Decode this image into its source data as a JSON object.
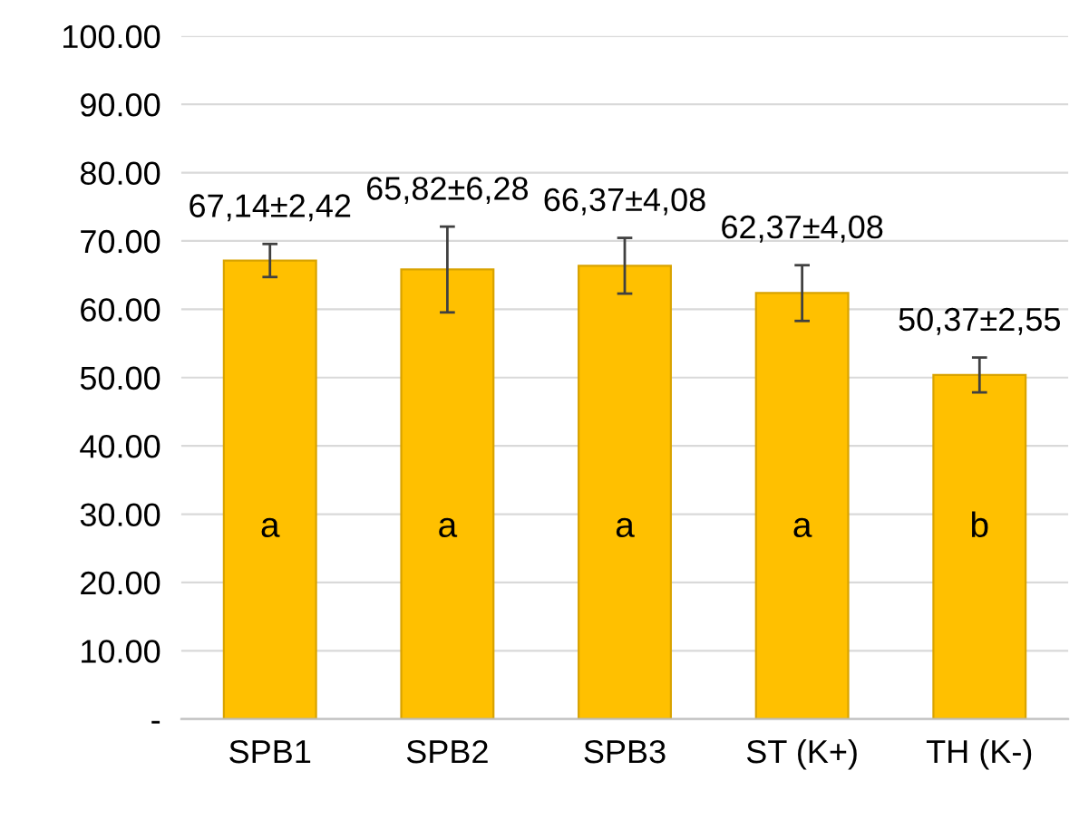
{
  "chart_data": {
    "type": "bar",
    "categories": [
      "SPB1",
      "SPB2",
      "SPB3",
      "ST (K+)",
      "TH (K-)"
    ],
    "values": [
      67.14,
      65.82,
      66.37,
      62.37,
      50.37
    ],
    "errors": [
      2.42,
      6.28,
      4.08,
      4.08,
      2.55
    ],
    "value_labels": [
      "67,14±2,42",
      "65,82±6,28",
      "66,37±4,08",
      "62,37±4,08",
      "50,37±2,55"
    ],
    "color": "#ffc000",
    "ylim": [
      0,
      100
    ],
    "yticks": [
      {
        "value": 0,
        "label": "-"
      },
      {
        "value": 10,
        "label": "10.00"
      },
      {
        "value": 20,
        "label": "20.00"
      },
      {
        "value": 30,
        "label": "30.00"
      },
      {
        "value": 40,
        "label": "40.00"
      },
      {
        "value": 50,
        "label": "50.00"
      },
      {
        "value": 60,
        "label": "60.00"
      },
      {
        "value": 70,
        "label": "70.00"
      },
      {
        "value": 80,
        "label": "80.00"
      },
      {
        "value": 90,
        "label": "90.00"
      },
      {
        "value": 100,
        "label": "100.00"
      }
    ],
    "grid": "y",
    "annotations": [
      "a",
      "a",
      "a",
      "a",
      "b"
    ]
  }
}
